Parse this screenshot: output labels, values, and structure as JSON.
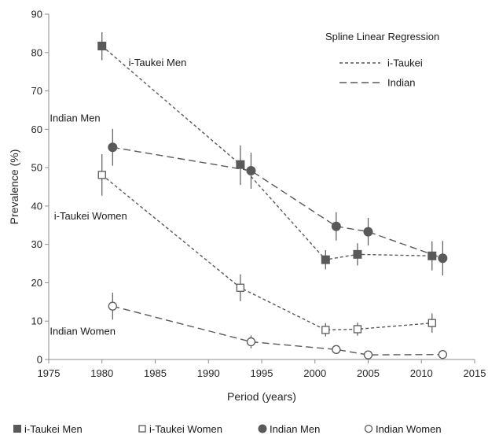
{
  "chart_data": {
    "type": "scatter",
    "title": "",
    "xlabel": "Period (years)",
    "ylabel": "Prevalence (%)",
    "xlim": [
      1975,
      2015
    ],
    "ylim": [
      0,
      90
    ],
    "xticks": [
      1975,
      1980,
      1985,
      1990,
      1995,
      2000,
      2005,
      2010,
      2015
    ],
    "yticks": [
      0,
      10,
      20,
      30,
      40,
      50,
      60,
      70,
      80,
      90
    ],
    "grid": false,
    "legend_placement": "bottom",
    "regression_legend": {
      "title": "Spline Linear Regression",
      "items": [
        {
          "label": "i-Taukei",
          "style": "short-dash"
        },
        {
          "label": "Indian",
          "style": "long-dash"
        }
      ]
    },
    "annotations": [
      {
        "text": "i-Taukei Men",
        "x": 1982.5,
        "y": 76.5
      },
      {
        "text": "Indian Men",
        "x": 1975.1,
        "y": 62.0
      },
      {
        "text": "i-Taukei Women",
        "x": 1975.5,
        "y": 36.5
      },
      {
        "text": "Indian Women",
        "x": 1975.1,
        "y": 6.5
      }
    ],
    "series": [
      {
        "name": "i-Taukei Men",
        "marker": "filled-square",
        "line": "short-dash",
        "color": "#595959",
        "points": [
          {
            "x": 1980,
            "y": 81.7,
            "lo": 78.0,
            "hi": 85.3
          },
          {
            "x": 1993,
            "y": 50.8,
            "lo": 45.5,
            "hi": 55.8
          },
          {
            "x": 2001,
            "y": 26.0,
            "lo": 23.5,
            "hi": 28.5
          },
          {
            "x": 2004,
            "y": 27.4,
            "lo": 24.5,
            "hi": 30.3
          },
          {
            "x": 2011,
            "y": 27.0,
            "lo": 23.2,
            "hi": 30.8
          }
        ]
      },
      {
        "name": "i-Taukei Women",
        "marker": "open-square",
        "line": "short-dash",
        "color": "#595959",
        "points": [
          {
            "x": 1980,
            "y": 48.1,
            "lo": 42.7,
            "hi": 53.5
          },
          {
            "x": 1993,
            "y": 18.7,
            "lo": 15.2,
            "hi": 22.2
          },
          {
            "x": 2001,
            "y": 7.7,
            "lo": 6.0,
            "hi": 9.5
          },
          {
            "x": 2004,
            "y": 7.9,
            "lo": 6.2,
            "hi": 9.6
          },
          {
            "x": 2011,
            "y": 9.5,
            "lo": 7.0,
            "hi": 12.0
          }
        ]
      },
      {
        "name": "Indian Men",
        "marker": "filled-circle",
        "line": "long-dash",
        "color": "#595959",
        "points": [
          {
            "x": 1981,
            "y": 55.3,
            "lo": 50.5,
            "hi": 60.1
          },
          {
            "x": 1994,
            "y": 49.2,
            "lo": 44.5,
            "hi": 53.9
          },
          {
            "x": 2002,
            "y": 34.7,
            "lo": 31.0,
            "hi": 38.4
          },
          {
            "x": 2005,
            "y": 33.3,
            "lo": 29.7,
            "hi": 36.9
          },
          {
            "x": 2012,
            "y": 26.4,
            "lo": 21.9,
            "hi": 30.9
          }
        ]
      },
      {
        "name": "Indian Women",
        "marker": "open-circle",
        "line": "long-dash",
        "color": "#595959",
        "points": [
          {
            "x": 1981,
            "y": 13.9,
            "lo": 10.4,
            "hi": 17.4
          },
          {
            "x": 1994,
            "y": 4.6,
            "lo": 2.9,
            "hi": 6.3
          },
          {
            "x": 2002,
            "y": 2.6,
            "lo": null,
            "hi": null
          },
          {
            "x": 2005,
            "y": 1.2,
            "lo": null,
            "hi": null
          },
          {
            "x": 2012,
            "y": 1.3,
            "lo": null,
            "hi": null
          }
        ]
      }
    ]
  }
}
